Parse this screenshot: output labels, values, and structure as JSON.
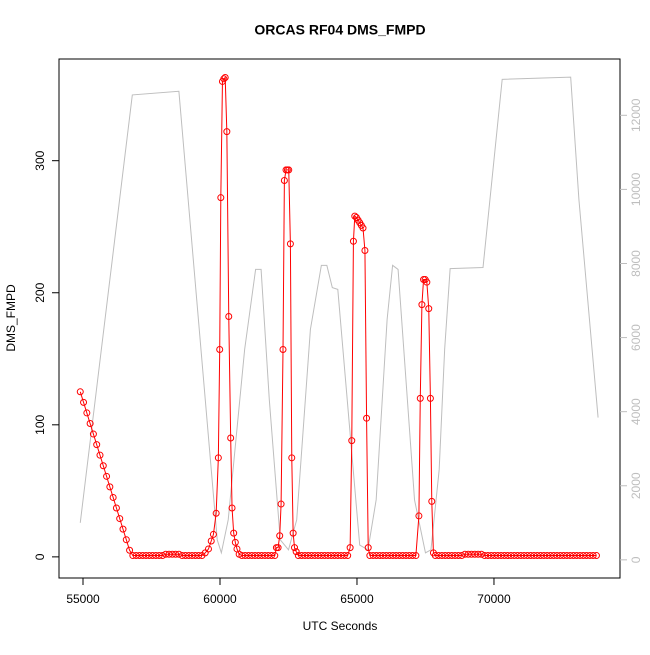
{
  "chart_data": {
    "type": "line",
    "title": "ORCAS RF04 DMS_FMPD",
    "x_label": "UTC Seconds",
    "y_label": "DMS_FMPD",
    "xlim": [
      54124,
      74600
    ],
    "xticks": [
      55000,
      60000,
      65000,
      70000
    ],
    "ylim": [
      -16,
      377
    ],
    "yticks": [
      0,
      100,
      200,
      300
    ],
    "y2lim": [
      -490,
      13520
    ],
    "y2ticks": [
      0,
      2000,
      4000,
      6000,
      8000,
      10000,
      12000
    ],
    "y2_color": "#bebebe",
    "series": [
      {
        "color": "#ff0000",
        "marker": "circle",
        "x": [
          54900,
          55020,
          55140,
          55260,
          55380,
          55500,
          55620,
          55740,
          55860,
          55980,
          56100,
          56220,
          56340,
          56460,
          56580,
          56700,
          56820,
          56940,
          57060,
          57180,
          57300,
          57420,
          57540,
          57660,
          57780,
          57900,
          58020,
          58140,
          58260,
          58380,
          58500,
          58620,
          58740,
          58860,
          58980,
          59100,
          59220,
          59340,
          59460,
          59580,
          59680,
          59760,
          59860,
          59940,
          59990,
          60030,
          60090,
          60140,
          60190,
          60250,
          60320,
          60390,
          60440,
          60500,
          60560,
          60620,
          60700,
          60800,
          60920,
          61040,
          61160,
          61280,
          61400,
          61520,
          61640,
          61760,
          61880,
          62000,
          62060,
          62120,
          62180,
          62230,
          62300,
          62350,
          62410,
          62460,
          62510,
          62570,
          62620,
          62670,
          62720,
          62780,
          62860,
          62980,
          63100,
          63220,
          63340,
          63460,
          63580,
          63700,
          63820,
          63940,
          64060,
          64180,
          64300,
          64420,
          64540,
          64660,
          64750,
          64810,
          64870,
          64920,
          64980,
          65040,
          65100,
          65160,
          65220,
          65290,
          65350,
          65410,
          65470,
          65590,
          65710,
          65830,
          65950,
          66070,
          66190,
          66310,
          66430,
          66550,
          66670,
          66790,
          66910,
          67030,
          67150,
          67260,
          67310,
          67370,
          67430,
          67490,
          67550,
          67620,
          67680,
          67730,
          67790,
          67860,
          67980,
          68100,
          68220,
          68340,
          68460,
          68580,
          68700,
          68820,
          68940,
          69060,
          69180,
          69300,
          69420,
          69540,
          69660,
          69780,
          69900,
          70020,
          70140,
          70260,
          70380,
          70500,
          70620,
          70740,
          70860,
          70980,
          71100,
          71220,
          71340,
          71460,
          71580,
          71700,
          71820,
          71940,
          72060,
          72180,
          72300,
          72420,
          72540,
          72660,
          72780,
          72900,
          73020,
          73140,
          73260,
          73380,
          73500,
          73620,
          73740
        ],
        "values": [
          125,
          117,
          109,
          101,
          93,
          85,
          77,
          69,
          61,
          53,
          45,
          37,
          29,
          21,
          13,
          5,
          1,
          1,
          1,
          1,
          1,
          1,
          1,
          1,
          1,
          1,
          2,
          2,
          2,
          2,
          2,
          1,
          1,
          1,
          1,
          1,
          1,
          1,
          3,
          6,
          12,
          17,
          33,
          75,
          157,
          272,
          360,
          362,
          363,
          322,
          182,
          90,
          37,
          18,
          11,
          6,
          2,
          1,
          1,
          1,
          1,
          1,
          1,
          1,
          1,
          1,
          1,
          1,
          7,
          7,
          16,
          40,
          157,
          285,
          293,
          293,
          293,
          237,
          75,
          18,
          7,
          4,
          1,
          1,
          1,
          1,
          1,
          1,
          1,
          1,
          1,
          1,
          1,
          1,
          1,
          1,
          1,
          1,
          7,
          88,
          239,
          258,
          257,
          255,
          253,
          251,
          249,
          232,
          105,
          7,
          1,
          1,
          1,
          1,
          1,
          1,
          1,
          1,
          1,
          1,
          1,
          1,
          1,
          1,
          1,
          31,
          120,
          191,
          210,
          210,
          208,
          188,
          120,
          42,
          3,
          1,
          1,
          1,
          1,
          1,
          1,
          1,
          1,
          1,
          2,
          2,
          2,
          2,
          2,
          2,
          1,
          1,
          1,
          1,
          1,
          1,
          1,
          1,
          1,
          1,
          1,
          1,
          1,
          1,
          1,
          1,
          1,
          1,
          1,
          1,
          1,
          1,
          1,
          1,
          1,
          1,
          1,
          1,
          1,
          1,
          1,
          1,
          1,
          1,
          1
        ]
      },
      {
        "color": "#bebebe",
        "axis": "y2",
        "x": [
          54900,
          56800,
          58500,
          59900,
          60050,
          60300,
          60900,
          61300,
          61500,
          61800,
          62200,
          62500,
          62800,
          63300,
          63700,
          63900,
          64100,
          64300,
          64800,
          65100,
          65400,
          65700,
          66100,
          66300,
          66500,
          67100,
          67500,
          67700,
          68000,
          68200,
          68400,
          69600,
          70300,
          72800,
          73100,
          73800
        ],
        "values": [
          1000,
          12550,
          12650,
          540,
          190,
          1080,
          5680,
          7840,
          7840,
          4320,
          540,
          270,
          1080,
          6220,
          7950,
          7950,
          7350,
          7300,
          2970,
          400,
          270,
          1620,
          6490,
          7950,
          7840,
          1620,
          190,
          270,
          2430,
          5680,
          7860,
          7890,
          12970,
          13030,
          9730,
          3840
        ]
      }
    ]
  }
}
